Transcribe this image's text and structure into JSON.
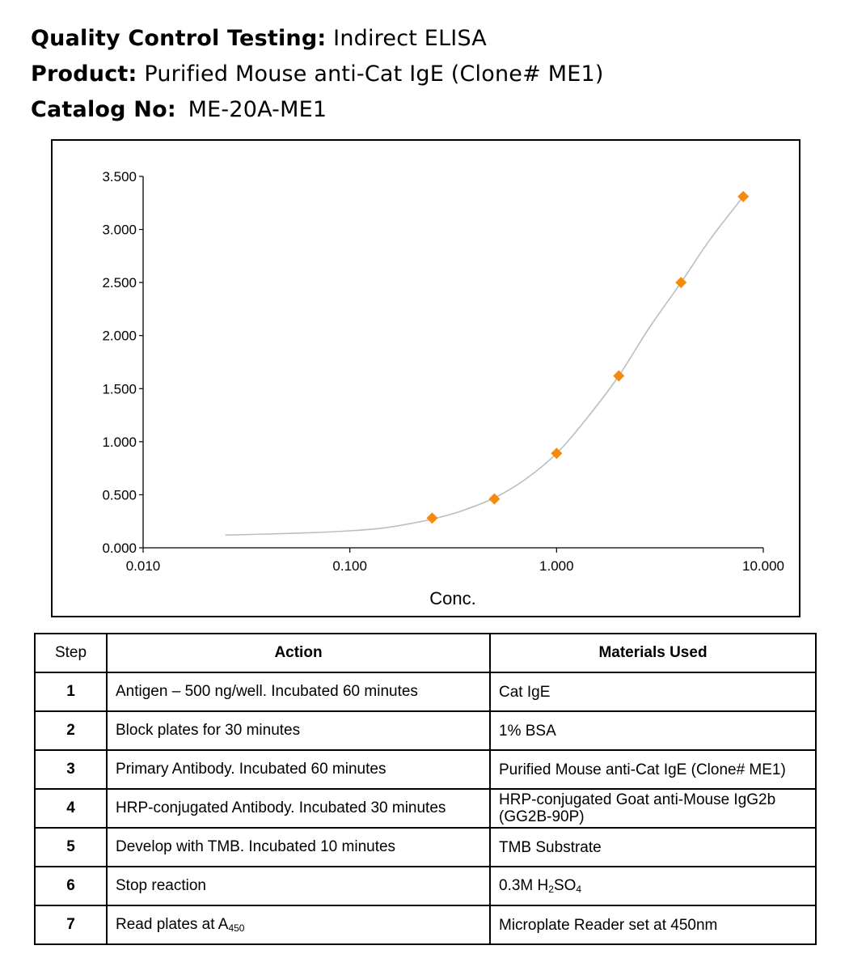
{
  "header": {
    "qc_label": "Quality Control Testing:",
    "qc_value": "Indirect ELISA",
    "product_label": "Product:",
    "product_value": "Purified Mouse anti-Cat IgE (Clone# ME1)",
    "catalog_label": "Catalog No:",
    "catalog_value": "ME-20A-ME1"
  },
  "chart_data": {
    "type": "scatter",
    "xlabel": "Conc.",
    "ylabel": "",
    "x_scale": "log",
    "xlim": [
      0.01,
      10
    ],
    "ylim": [
      0,
      3.5
    ],
    "x_ticks": [
      "0.010",
      "0.100",
      "1.000",
      "10.000"
    ],
    "y_ticks": [
      "0.000",
      "0.500",
      "1.000",
      "1.500",
      "2.000",
      "2.500",
      "3.000",
      "3.500"
    ],
    "grid": false,
    "marker_color": "#f7890f",
    "curve_color": "#bdbdbd",
    "series": [
      {
        "x": [
          0.25,
          0.5,
          1.0,
          2.0,
          4.0,
          8.0
        ],
        "y": [
          0.28,
          0.46,
          0.89,
          1.62,
          2.5,
          3.31
        ]
      }
    ],
    "fit_curve": {
      "x": [
        0.025,
        0.04,
        0.06,
        0.1,
        0.15,
        0.25,
        0.35,
        0.5,
        0.7,
        1.0,
        1.4,
        2.0,
        2.8,
        4.0,
        5.5,
        8.0
      ],
      "y": [
        0.12,
        0.13,
        0.14,
        0.16,
        0.19,
        0.27,
        0.35,
        0.47,
        0.64,
        0.89,
        1.22,
        1.62,
        2.07,
        2.5,
        2.9,
        3.31
      ]
    }
  },
  "table": {
    "headers": [
      "Step",
      "Action",
      "Materials Used"
    ],
    "rows": [
      {
        "step": "1",
        "action": "Antigen – 500 ng/well. Incubated 60 minutes",
        "materials": "Cat IgE"
      },
      {
        "step": "2",
        "action": "Block plates for 30 minutes",
        "materials": "1% BSA"
      },
      {
        "step": "3",
        "action": "Primary Antibody. Incubated 60 minutes",
        "materials": "Purified Mouse anti-Cat IgE (Clone# ME1)"
      },
      {
        "step": "4",
        "action": "HRP-conjugated Antibody. Incubated 30 minutes",
        "materials": "HRP-conjugated Goat anti-Mouse IgG2b (GG2B-90P)"
      },
      {
        "step": "5",
        "action": "Develop with TMB. Incubated 10 minutes",
        "materials": "TMB Substrate"
      },
      {
        "step": "6",
        "action": "Stop reaction",
        "materials_pre": "0.3M H",
        "materials_sub1": "2",
        "materials_mid": "SO",
        "materials_sub2": "4"
      },
      {
        "step": "7",
        "action_pre": "Read plates at A",
        "action_sub": "450",
        "materials": "Microplate Reader set at 450nm"
      }
    ]
  }
}
